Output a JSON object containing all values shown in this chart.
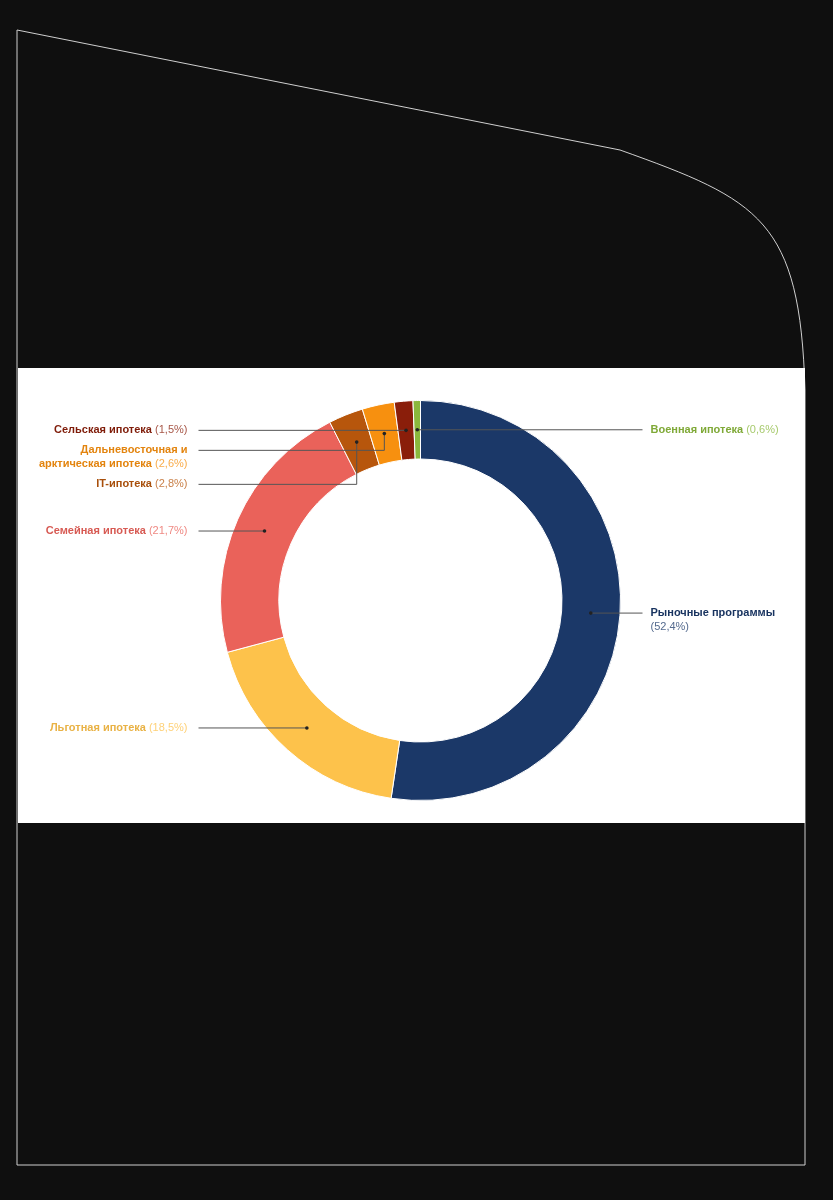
{
  "chart_data": {
    "type": "donut",
    "categories": [
      "Рыночные программы",
      "Льготная ипотека",
      "Семейная ипотека",
      "IT-ипотека",
      "Дальневосточная и арктическая ипотека",
      "Сельская ипотека",
      "Военная ипотека"
    ],
    "values": [
      52.4,
      18.5,
      21.7,
      2.8,
      2.6,
      1.5,
      0.6
    ],
    "value_labels": [
      "(52,4%)",
      "(18,5%)",
      "(21,7%)",
      "(2,8%)",
      "(2,6%)",
      "(1,5%)",
      "(0,6%)"
    ],
    "colors": [
      "#1b3868",
      "#fdc24b",
      "#ea625a",
      "#b7560c",
      "#f7900f",
      "#8a1e0a",
      "#8ab83c"
    ],
    "legend": false
  }
}
